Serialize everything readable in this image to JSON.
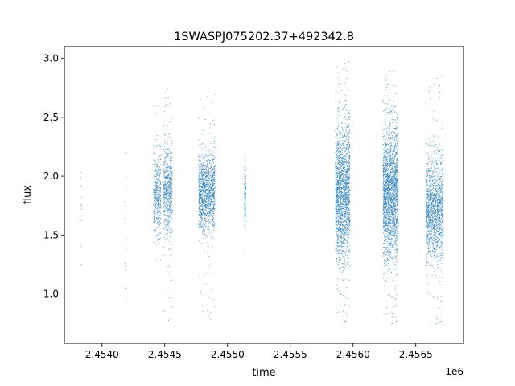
{
  "chart_data": {
    "type": "scatter",
    "title": "1SWASPJ075202.37+492342.8",
    "xlabel": "time",
    "ylabel": "flux",
    "x_offset_label": "1e6",
    "xlim": [
      2453700,
      2456880
    ],
    "ylim": [
      0.58,
      3.1
    ],
    "x_ticks": [
      2.454,
      2.4545,
      2.455,
      2.4555,
      2.456,
      2.4565
    ],
    "x_tick_labels": [
      "2.4540",
      "2.4545",
      "2.4550",
      "2.4555",
      "2.4560",
      "2.4565"
    ],
    "y_ticks": [
      1.0,
      1.5,
      2.0,
      2.5,
      3.0
    ],
    "y_tick_labels": [
      "1.0",
      "1.5",
      "2.0",
      "2.5",
      "3.0"
    ],
    "grid": false,
    "point_color": "#1f77b4",
    "clusters": [
      {
        "x": [
          2453832,
          2453838
        ],
        "y_center": 1.65,
        "y_spread": 0.3,
        "y_min": 1.13,
        "y_max": 2.05,
        "count": 14
      },
      {
        "x": [
          2454180,
          2454195
        ],
        "y_center": 1.6,
        "y_spread": 0.35,
        "y_min": 0.95,
        "y_max": 2.22,
        "count": 22
      },
      {
        "x": [
          2454410,
          2454470
        ],
        "y_center": 1.85,
        "y_spread": 0.17,
        "y_min": 1.25,
        "y_max": 2.75,
        "count": 500
      },
      {
        "x": [
          2454490,
          2454560
        ],
        "y_center": 1.88,
        "y_spread": 0.19,
        "y_min": 0.75,
        "y_max": 2.8,
        "count": 700
      },
      {
        "x": [
          2454770,
          2454900
        ],
        "y_center": 1.86,
        "y_spread": 0.16,
        "y_min": 0.75,
        "y_max": 2.7,
        "count": 1400
      },
      {
        "x": [
          2455135,
          2455145
        ],
        "y_center": 1.85,
        "y_spread": 0.13,
        "y_min": 1.35,
        "y_max": 2.3,
        "count": 160
      },
      {
        "x": [
          2455860,
          2455975
        ],
        "y_center": 1.86,
        "y_spread": 0.28,
        "y_min": 0.73,
        "y_max": 2.98,
        "count": 2200
      },
      {
        "x": [
          2456240,
          2456360
        ],
        "y_center": 1.85,
        "y_spread": 0.28,
        "y_min": 0.72,
        "y_max": 2.96,
        "count": 2400
      },
      {
        "x": [
          2456580,
          2456720
        ],
        "y_center": 1.72,
        "y_spread": 0.22,
        "y_min": 0.72,
        "y_max": 2.85,
        "count": 1700
      }
    ]
  }
}
